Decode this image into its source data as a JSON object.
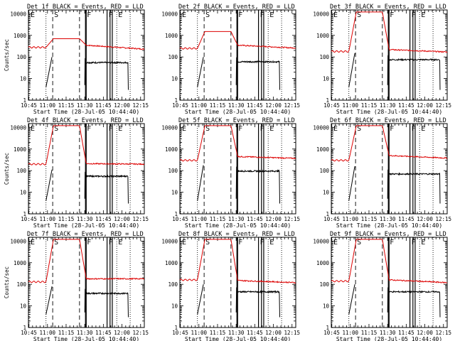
{
  "figure": {
    "xlabel": "Start Time (28-Jul-05 10:44:40)",
    "ylabel": "Counts/sec"
  },
  "chart_data": {
    "type": "line",
    "shared": {
      "xlim": [
        10.7444,
        12.3
      ],
      "ylim": [
        1,
        15000
      ],
      "y_scale": "log",
      "x_ticks": [
        {
          "v": 10.75,
          "label": "10:45"
        },
        {
          "v": 11.0,
          "label": "11:00"
        },
        {
          "v": 11.25,
          "label": "11:15"
        },
        {
          "v": 11.5,
          "label": "11:30"
        },
        {
          "v": 11.75,
          "label": "11:45"
        },
        {
          "v": 12.0,
          "label": "12:00"
        },
        {
          "v": 12.25,
          "label": "12:15"
        }
      ],
      "y_ticks": [
        {
          "v": 1,
          "label": "1"
        },
        {
          "v": 10,
          "label": "10"
        },
        {
          "v": 100,
          "label": "100"
        },
        {
          "v": 1000,
          "label": "1000"
        },
        {
          "v": 10000,
          "label": "10000"
        }
      ],
      "region_markers": [
        {
          "x": 10.74,
          "label": "E",
          "style": "dotted"
        },
        {
          "x": 10.98,
          "label": "",
          "style": "dotted"
        },
        {
          "x": 11.07,
          "label": "S",
          "style": "dashed"
        },
        {
          "x": 11.43,
          "label": "",
          "style": "dashed"
        },
        {
          "x": 11.51,
          "label": "F",
          "style": "solid"
        },
        {
          "x": 11.52,
          "label": "",
          "style": "solid"
        },
        {
          "x": 11.8,
          "label": "F",
          "style": "solid"
        },
        {
          "x": 11.84,
          "label": "",
          "style": "solid"
        },
        {
          "x": 11.87,
          "label": "",
          "style": "solid"
        },
        {
          "x": 11.93,
          "label": "E",
          "style": "dotted"
        },
        {
          "x": 12.11,
          "label": "",
          "style": "dotted"
        }
      ],
      "series_colors": {
        "events": "#000000",
        "lld": "#dd0000"
      }
    },
    "panels": [
      {
        "title": "Det 1f BLACK = Events, RED = LLD",
        "show_ylabel": true,
        "lld_pre": 280,
        "lld_peak": 700,
        "lld_post": [
          350,
          230
        ],
        "ev_pre": 40,
        "ev_post": 55,
        "ev_start": 10.98,
        "ev_peak": 100,
        "ev_end": 12.08
      },
      {
        "title": "Det 2f BLACK = Events, RED = LLD",
        "show_ylabel": false,
        "lld_pre": 250,
        "lld_peak": 1500,
        "lld_post": [
          350,
          260
        ],
        "ev_pre": 40,
        "ev_post": 60,
        "ev_start": 10.98,
        "ev_peak": 100,
        "ev_end": 12.08
      },
      {
        "title": "Det 3f BLACK = Events, RED = LLD",
        "show_ylabel": false,
        "lld_pre": 180,
        "lld_peak": 12000,
        "lld_post": [
          220,
          170
        ],
        "ev_pre": 40,
        "ev_post": 75,
        "ev_start": 10.98,
        "ev_peak": 150,
        "ev_end": 12.2
      },
      {
        "title": "Det 4f BLACK = Events, RED = LLD",
        "show_ylabel": true,
        "lld_pre": 200,
        "lld_peak": 12000,
        "lld_post": [
          210,
          200
        ],
        "ev_pre": 40,
        "ev_post": 55,
        "ev_start": 10.98,
        "ev_peak": 110,
        "ev_end": 12.08
      },
      {
        "title": "Det 5f BLACK = Events, RED = LLD",
        "show_ylabel": false,
        "lld_pre": 300,
        "lld_peak": 12000,
        "lld_post": [
          450,
          370
        ],
        "ev_pre": 40,
        "ev_post": 95,
        "ev_start": 10.98,
        "ev_peak": 180,
        "ev_end": 12.08
      },
      {
        "title": "Det 6f BLACK = Events, RED = LLD",
        "show_ylabel": false,
        "lld_pre": 300,
        "lld_peak": 12000,
        "lld_post": [
          500,
          380
        ],
        "ev_pre": 40,
        "ev_post": 70,
        "ev_start": 10.98,
        "ev_peak": 160,
        "ev_end": 12.2
      },
      {
        "title": "Det 7f BLACK = Events, RED = LLD",
        "show_ylabel": true,
        "lld_pre": 130,
        "lld_peak": 12000,
        "lld_post": [
          180,
          180
        ],
        "ev_pre": 40,
        "ev_post": 38,
        "ev_start": 10.98,
        "ev_peak": 80,
        "ev_end": 12.08
      },
      {
        "title": "Det 8f BLACK = Events, RED = LLD",
        "show_ylabel": false,
        "lld_pre": 160,
        "lld_peak": 12000,
        "lld_post": [
          150,
          120
        ],
        "ev_pre": 40,
        "ev_post": 45,
        "ev_start": 10.98,
        "ev_peak": 100,
        "ev_end": 12.08
      },
      {
        "title": "Det 9f BLACK = Events, RED = LLD",
        "show_ylabel": false,
        "lld_pre": 140,
        "lld_peak": 12000,
        "lld_post": [
          160,
          120
        ],
        "ev_pre": 40,
        "ev_post": 45,
        "ev_start": 10.98,
        "ev_peak": 100,
        "ev_end": 12.2
      }
    ]
  }
}
